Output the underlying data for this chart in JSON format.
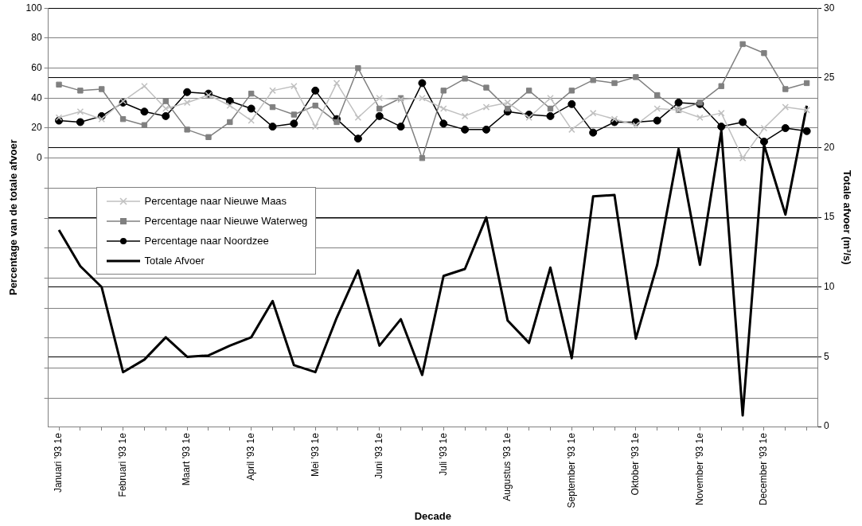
{
  "chart_data": {
    "type": "line",
    "xlabel": "Decade",
    "ylabel": "Percentage van de totale afvoer",
    "y2label": "Totale afvoer (m³/s)",
    "categories": [
      "Januari '93 1e",
      null,
      null,
      "Februari '93 1e",
      null,
      null,
      "Maart '93 1e",
      null,
      null,
      "April '93 1e",
      null,
      null,
      "Mei '93 1e",
      null,
      null,
      "Juni '93 1e",
      null,
      null,
      "Juli '93 1e",
      null,
      null,
      "Augustus '93 1e",
      null,
      null,
      "September '93 1e",
      null,
      null,
      "Oktober '93 1e",
      null,
      null,
      "November '93 1e",
      null,
      null,
      "December '93 1e",
      null,
      null
    ],
    "series": [
      {
        "name": "Percentage naar Nieuwe Maas",
        "color": "#c0c0c0",
        "marker": "cross",
        "values": [
          27,
          31,
          26,
          38,
          48,
          33,
          37,
          42,
          35,
          25,
          45,
          48,
          21,
          50,
          27,
          40,
          39,
          40,
          33,
          28,
          34,
          37,
          27,
          40,
          19,
          30,
          26,
          22,
          33,
          32,
          27,
          30,
          0,
          20,
          34,
          32
        ]
      },
      {
        "name": "Percentage naar Nieuwe Waterweg",
        "color": "#808080",
        "marker": "square",
        "values": [
          49,
          45,
          46,
          26,
          22,
          38,
          19,
          14,
          24,
          43,
          34,
          29,
          35,
          24,
          60,
          33,
          40,
          0,
          45,
          53,
          47,
          33,
          45,
          33,
          45,
          52,
          50,
          54,
          42,
          32,
          37,
          48,
          76,
          70,
          46,
          50
        ]
      },
      {
        "name": "Percentage naar Noordzee",
        "color": "#000000",
        "marker": "circle",
        "values": [
          25,
          24,
          28,
          37,
          31,
          28,
          44,
          43,
          38,
          33,
          21,
          23,
          45,
          26,
          13,
          28,
          21,
          50,
          23,
          19,
          19,
          31,
          29,
          28,
          36,
          17,
          24,
          24,
          25,
          37,
          36,
          21,
          24,
          11,
          20,
          18
        ]
      },
      {
        "name": "Totale Afvoer",
        "color": "#000000",
        "marker": "none",
        "axis": "y2",
        "values": [
          14.1,
          11.5,
          10,
          3.9,
          4.8,
          6.4,
          5,
          5.1,
          5.8,
          6.4,
          9,
          4.4,
          3.9,
          7.8,
          11.2,
          5.8,
          7.7,
          3.7,
          10.8,
          11.3,
          15,
          7.6,
          6,
          11.4,
          4.9,
          16.5,
          16.6,
          6.3,
          11.6,
          19.9,
          11.6,
          21.2,
          0.8,
          20.2,
          15.2,
          23
        ]
      }
    ],
    "ylim": [
      -179,
      100
    ],
    "yticks": [
      {
        "value": -160,
        "label": null
      },
      {
        "value": -140,
        "label": null
      },
      {
        "value": -120,
        "label": null
      },
      {
        "value": -100,
        "label": null
      },
      {
        "value": -80,
        "label": null
      },
      {
        "value": -60,
        "label": null
      },
      {
        "value": -40,
        "label": null
      },
      {
        "value": -20,
        "label": null
      },
      0,
      20,
      40,
      60,
      80,
      100
    ],
    "y2lim": [
      0,
      30
    ],
    "y2ticks": [
      0,
      5,
      10,
      15,
      20,
      25,
      30
    ],
    "grid": true,
    "legend": "left",
    "line_style": "solid"
  }
}
